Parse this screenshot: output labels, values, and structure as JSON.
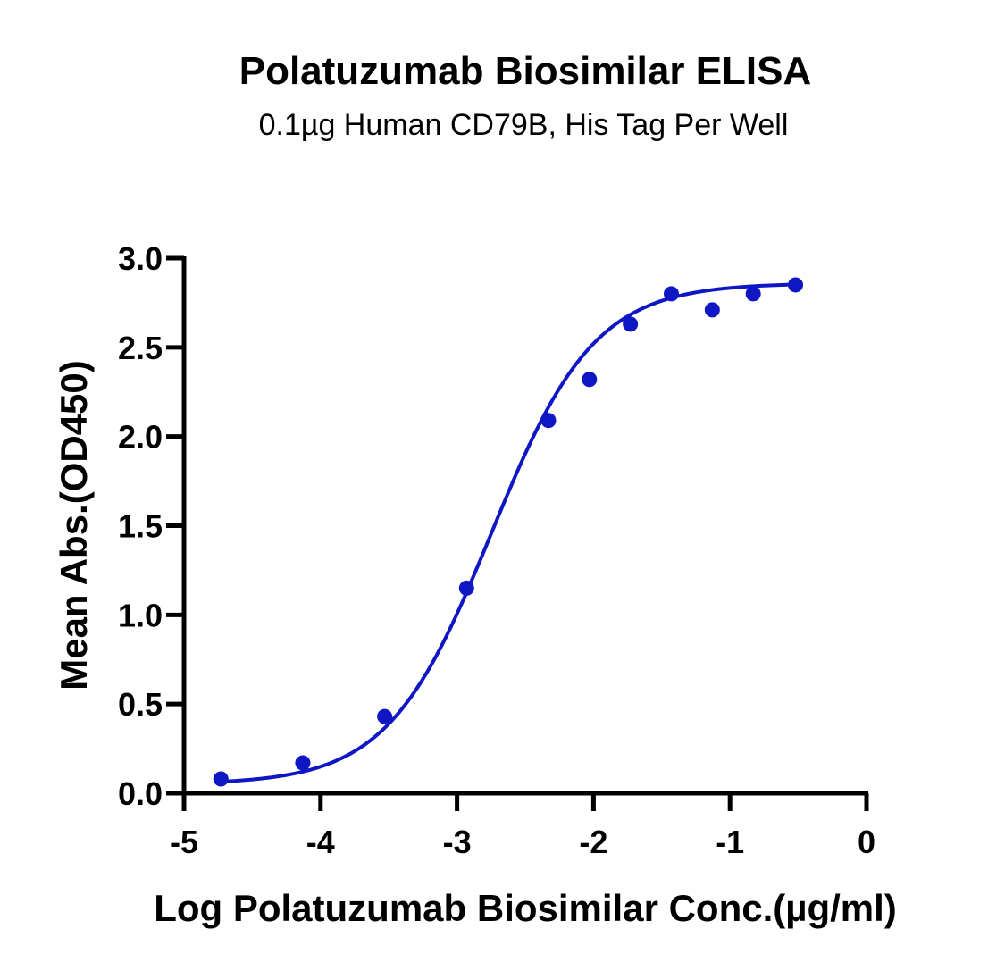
{
  "chart_data": {
    "type": "scatter",
    "title": "Polatuzumab Biosimilar ELISA",
    "subtitle": "0.1µg Human CD79B, His Tag Per Well",
    "xlabel": "Log Polatuzumab Biosimilar Conc.(µg/ml)",
    "ylabel": "Mean Abs.(OD450)",
    "xlim": [
      -5,
      0
    ],
    "ylim": [
      0,
      3.0
    ],
    "x_ticks": [
      -5,
      -4,
      -3,
      -2,
      -1,
      0
    ],
    "x_tick_labels": [
      "-5",
      "-4",
      "-3",
      "-2",
      "-1",
      "0"
    ],
    "y_ticks": [
      0,
      0.5,
      1.0,
      1.5,
      2.0,
      2.5,
      3.0
    ],
    "y_tick_labels": [
      "0.0",
      "0.5",
      "1.0",
      "1.5",
      "2.0",
      "2.5",
      "3.0"
    ],
    "grid": false,
    "series": [
      {
        "x": [
          -4.73,
          -4.13,
          -3.53,
          -2.93,
          -2.33,
          -2.03,
          -1.73,
          -1.43,
          -1.13,
          -0.83,
          -0.52
        ],
        "y": [
          0.08,
          0.17,
          0.43,
          1.15,
          2.09,
          2.32,
          2.63,
          2.8,
          2.71,
          2.8,
          2.85
        ],
        "color": "#0f16c4",
        "marker": "circle",
        "fit_curve": {
          "model": "4PL",
          "bottom": 0.05,
          "top": 2.86,
          "log_ec50": -2.75,
          "hill_slope": 1.15,
          "x_range": [
            -4.73,
            -0.52
          ]
        }
      }
    ]
  }
}
